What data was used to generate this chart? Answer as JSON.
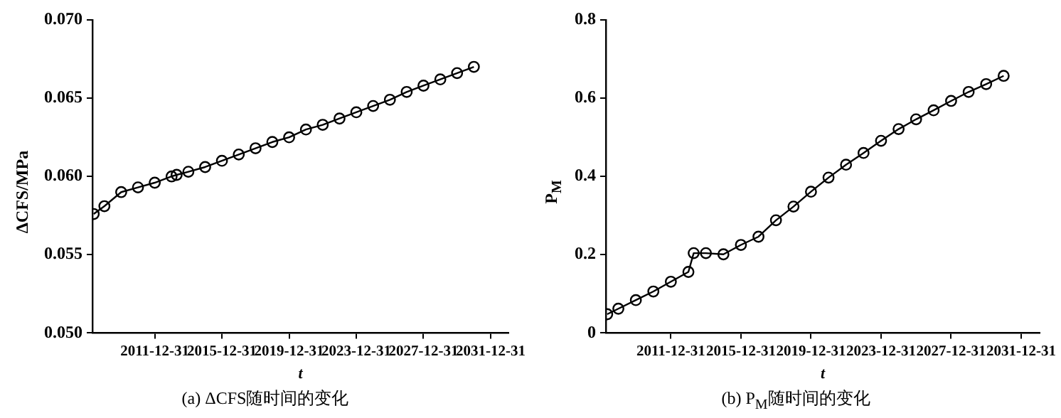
{
  "chart_data": [
    {
      "type": "line",
      "xlabel": "t",
      "ylabel": "ΔCFS/MPa",
      "annotations": [
        "(a) ΔCFS随时间的变化"
      ],
      "marker": "circle",
      "x": [
        "2008-05-12",
        "2008-12-31",
        "2009-12-31",
        "2010-12-31",
        "2011-12-31",
        "2012-12-31",
        "2013-04-20",
        "2013-12-31",
        "2014-12-31",
        "2015-12-31",
        "2016-12-31",
        "2017-12-31",
        "2018-12-31",
        "2019-12-31",
        "2020-12-31",
        "2021-12-31",
        "2022-12-31",
        "2023-12-31",
        "2024-12-31",
        "2025-12-31",
        "2026-12-31",
        "2027-12-31",
        "2028-12-31",
        "2029-12-31",
        "2030-12-31"
      ],
      "series": [
        {
          "color": "#000000",
          "values": [
            0.0576,
            0.0581,
            0.059,
            0.0593,
            0.0596,
            0.06,
            0.0601,
            0.0603,
            0.0606,
            0.061,
            0.0614,
            0.0618,
            0.0622,
            0.0625,
            0.063,
            0.0633,
            0.0637,
            0.0641,
            0.0645,
            0.0649,
            0.0654,
            0.0658,
            0.0662,
            0.0666,
            0.067
          ]
        }
      ],
      "xlim": [
        "2008-04-15",
        "2033-01-25"
      ],
      "xticks": [
        "2011-12-31",
        "2015-12-31",
        "2019-12-31",
        "2023-12-31",
        "2027-12-31",
        "2031-12-31"
      ],
      "ylim": [
        0.05,
        0.07
      ],
      "yticks": [
        {
          "value": 0.05,
          "label": "0.050"
        },
        {
          "value": 0.055,
          "label": "0.055"
        },
        {
          "value": 0.06,
          "label": "0.060"
        },
        {
          "value": 0.065,
          "label": "0.065"
        },
        {
          "value": 0.07,
          "label": "0.070"
        }
      ]
    },
    {
      "type": "line",
      "xlabel": "t",
      "ylabel": "P$_{M}$",
      "annotations": [
        "(b) P$_{M}$随时间的变化"
      ],
      "marker": "circle",
      "x": [
        "2008-05-12",
        "2008-12-31",
        "2009-12-31",
        "2010-12-31",
        "2011-12-31",
        "2012-12-31",
        "2013-04-20",
        "2013-12-31",
        "2014-12-31",
        "2015-12-31",
        "2016-12-31",
        "2017-12-31",
        "2018-12-31",
        "2019-12-31",
        "2020-12-31",
        "2021-12-31",
        "2022-12-31",
        "2023-12-31",
        "2024-12-31",
        "2025-12-31",
        "2026-12-31",
        "2027-12-31",
        "2028-12-31",
        "2029-12-31",
        "2030-12-31"
      ],
      "series": [
        {
          "color": "#000000",
          "values": [
            0.048,
            0.062,
            0.084,
            0.106,
            0.131,
            0.156,
            0.204,
            0.204,
            0.201,
            0.225,
            0.246,
            0.288,
            0.323,
            0.361,
            0.397,
            0.43,
            0.46,
            0.491,
            0.521,
            0.546,
            0.569,
            0.593,
            0.616,
            0.636,
            0.657
          ]
        }
      ],
      "xlim": [
        "2008-04-15",
        "2033-01-25"
      ],
      "xticks": [
        "2011-12-31",
        "2015-12-31",
        "2019-12-31",
        "2023-12-31",
        "2027-12-31",
        "2031-12-31"
      ],
      "ylim": [
        0,
        0.8
      ],
      "yticks": [
        0,
        0.2,
        0.4,
        0.6,
        0.8
      ]
    }
  ]
}
